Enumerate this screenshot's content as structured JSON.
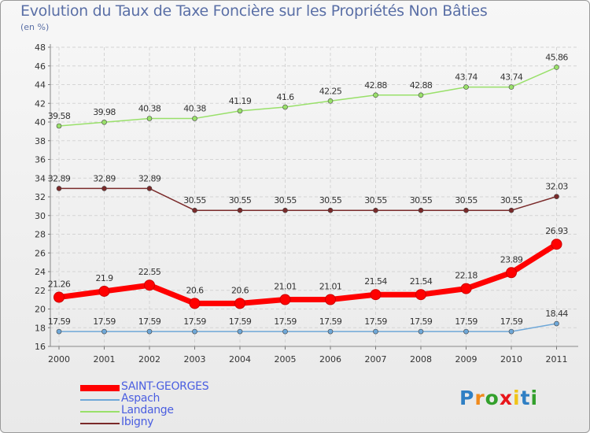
{
  "title": "Evolution du Taux de Taxe Foncière sur les Propriétés Non Bâties",
  "unit": "(en %)",
  "brand": {
    "text": "Proxiti",
    "colors": [
      "#2f7fc4",
      "#f08a1c",
      "#33a02c",
      "#e8161b",
      "#f0c419",
      "#2f7fc4",
      "#33a02c"
    ]
  },
  "chart_data": {
    "type": "line",
    "title": "Evolution du Taux de Taxe Foncière sur les Propriétés Non Bâties",
    "ylabel": "(en %)",
    "xlabel": "",
    "ylim": [
      16,
      48
    ],
    "yticks": [
      16,
      18,
      20,
      22,
      24,
      26,
      28,
      30,
      32,
      34,
      36,
      38,
      40,
      42,
      44,
      46,
      48
    ],
    "grid": true,
    "legend_position": "bottom-left",
    "x": [
      "2000",
      "2001",
      "2002",
      "2003",
      "2004",
      "2005",
      "2006",
      "2007",
      "2008",
      "2009",
      "2010",
      "2011"
    ],
    "series": [
      {
        "name": "SAINT-GEORGES",
        "color": "#ff0000",
        "values": [
          21.26,
          21.9,
          22.55,
          20.6,
          20.6,
          21.01,
          21.01,
          21.54,
          21.54,
          22.18,
          23.89,
          26.93
        ],
        "labels": [
          "21.26",
          "21.9",
          "22.55",
          "20.6",
          "20.6",
          "21.01",
          "21.01",
          "21.54",
          "21.54",
          "22.18",
          "23.89",
          "26.93"
        ]
      },
      {
        "name": "Aspach",
        "color": "#6fa8d8",
        "values": [
          17.59,
          17.59,
          17.59,
          17.59,
          17.59,
          17.59,
          17.59,
          17.59,
          17.59,
          17.59,
          17.59,
          18.44
        ],
        "labels": [
          "17.59",
          "17.59",
          "17.59",
          "17.59",
          "17.59",
          "17.59",
          "17.59",
          "17.59",
          "17.59",
          "17.59",
          "17.59",
          "18.44"
        ]
      },
      {
        "name": "Landange",
        "color": "#99e06a",
        "values": [
          39.58,
          39.98,
          40.38,
          40.38,
          41.19,
          41.6,
          42.25,
          42.88,
          42.88,
          43.74,
          43.74,
          45.86
        ],
        "labels": [
          "39.58",
          "39.98",
          "40.38",
          "40.38",
          "41.19",
          "41.6",
          "42.25",
          "42.88",
          "42.88",
          "43.74",
          "43.74",
          "45.86"
        ]
      },
      {
        "name": "Ibigny",
        "color": "#7a2a2a",
        "values": [
          32.89,
          32.89,
          32.89,
          30.55,
          30.55,
          30.55,
          30.55,
          30.55,
          30.55,
          30.55,
          30.55,
          32.03
        ],
        "labels": [
          "32.89",
          "32.89",
          "32.89",
          "30.55",
          "30.55",
          "30.55",
          "30.55",
          "30.55",
          "30.55",
          "30.55",
          "30.55",
          "32.03"
        ]
      }
    ]
  }
}
